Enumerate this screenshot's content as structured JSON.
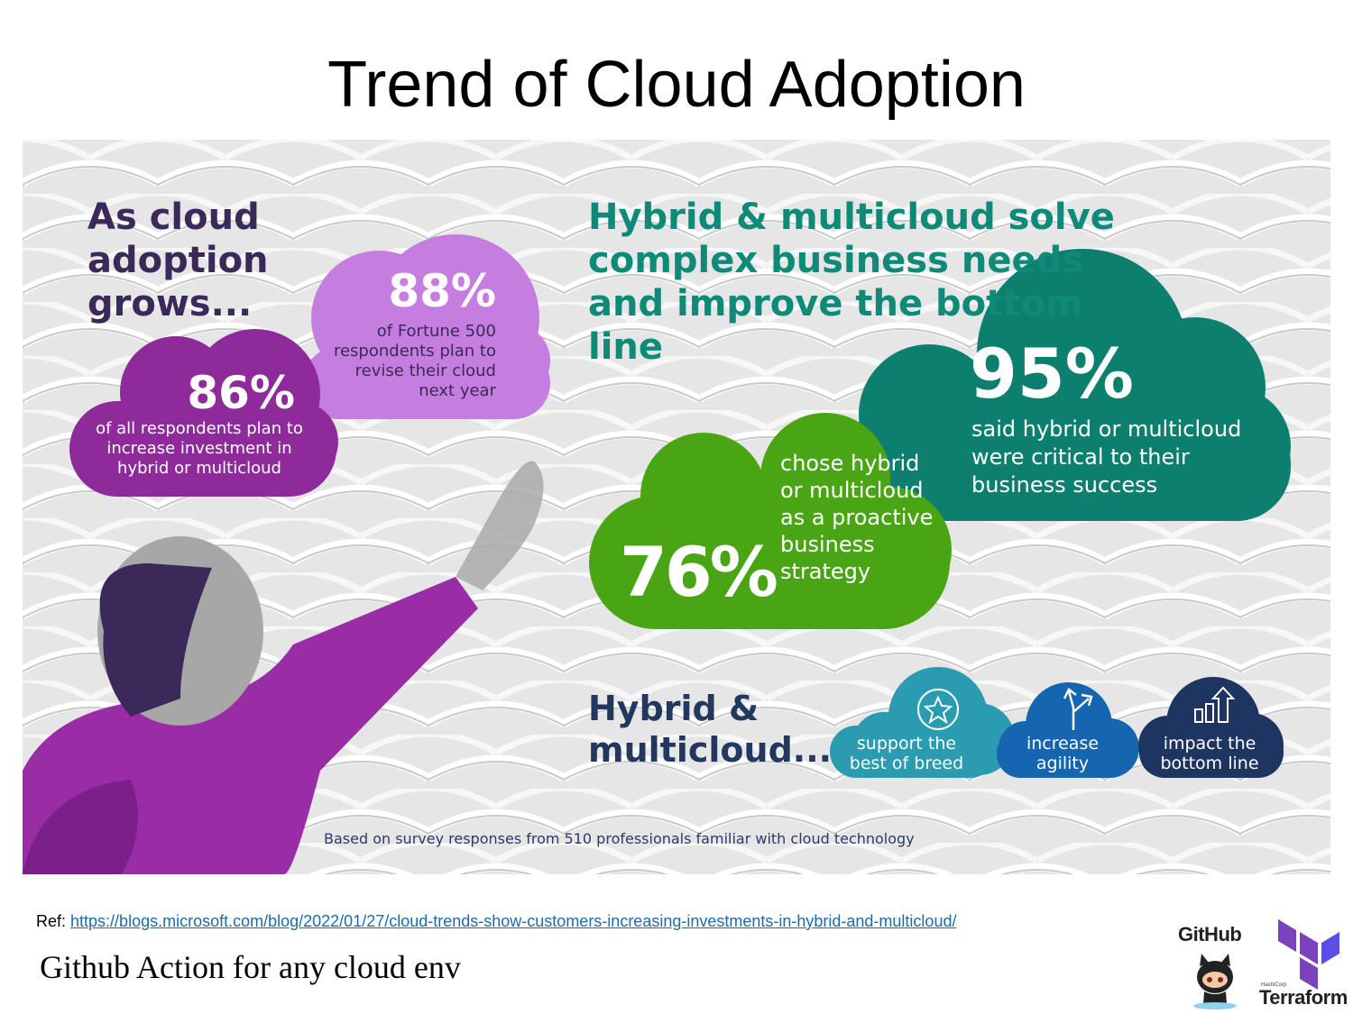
{
  "title": "Trend of Cloud Adoption",
  "infographic": {
    "left_heading": "As cloud adoption grows...",
    "cloud_86": {
      "pct": "86%",
      "text": "of all respondents plan to increase investment in hybrid or multicloud",
      "color": "#8e2a9a"
    },
    "cloud_88": {
      "pct": "88%",
      "text": "of Fortune 500 respondents plan to revise their cloud next year",
      "color": "#c67de0"
    },
    "right_heading": "Hybrid & multicloud solve complex business needs and improve the bottom line",
    "cloud_95": {
      "pct": "95%",
      "text": "said hybrid or multicloud were critical to their business success",
      "color": "#0d7f6f"
    },
    "cloud_76": {
      "pct": "76%",
      "text": "chose hybrid or multicloud as a proactive business strategy",
      "color": "#4aa515"
    },
    "bottom_heading": "Hybrid & multicloud...",
    "benefits": [
      {
        "label": "support the best of breed",
        "icon": "star-icon",
        "color": "#2a9bb0"
      },
      {
        "label": "increase agility",
        "icon": "split-arrow-icon",
        "color": "#1565b0"
      },
      {
        "label": "impact the bottom line",
        "icon": "bar-growth-icon",
        "color": "#1f3561"
      }
    ],
    "footnote": "Based on survey responses from 510 professionals familiar with cloud technology"
  },
  "reference": {
    "prefix": "Ref:",
    "url": "https://blogs.microsoft.com/blog/2022/01/27/cloud-trends-show-customers-increasing-investments-in-hybrid-and-multicloud/"
  },
  "subtitle": "Github Action for any cloud env",
  "logos": {
    "github": "GitHub",
    "terraform": "Terraform",
    "terraform_maker": "HashiCorp"
  }
}
